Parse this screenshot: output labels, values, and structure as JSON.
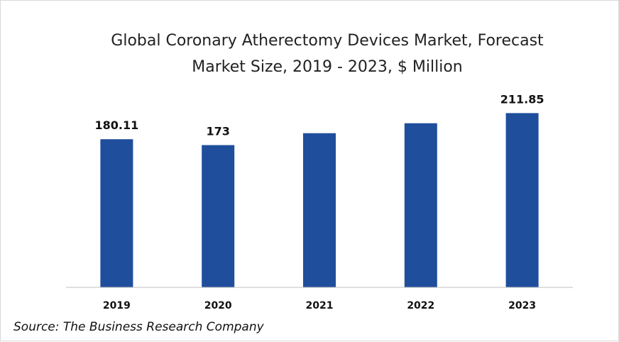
{
  "chart_data": {
    "type": "bar",
    "title_lines": [
      "Global Coronary Atherectomy Devices Market, Forecast",
      "Market Size, 2019 - 2023, $ Million"
    ],
    "categories": [
      "2019",
      "2020",
      "2021",
      "2022",
      "2023"
    ],
    "values": [
      180.11,
      173,
      187.5,
      199.5,
      211.85
    ],
    "data_labels": [
      "180.11",
      "173",
      "",
      "",
      "211.85"
    ],
    "bar_color": "#1f4e9c",
    "ylim": [
      0,
      245
    ],
    "grid": false,
    "legend": "none"
  },
  "source": "Source: The Business Research Company"
}
